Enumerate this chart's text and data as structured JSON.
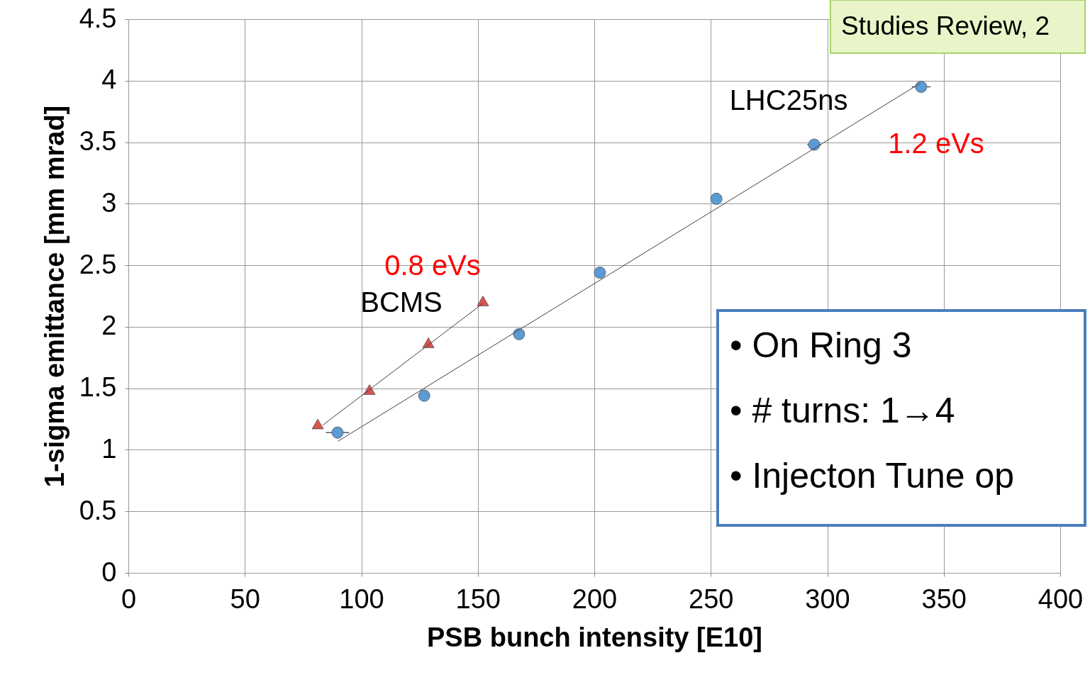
{
  "chart_data": {
    "type": "scatter",
    "xlabel": "PSB bunch intensity [E10]",
    "ylabel": "1-sigma emittance [mm mrad]",
    "xlim": [
      0,
      400
    ],
    "xticks": [
      0,
      50,
      100,
      150,
      200,
      250,
      300,
      350,
      400
    ],
    "ylim": [
      0,
      4.5
    ],
    "yticks": [
      0,
      0.5,
      1,
      1.5,
      2,
      2.5,
      3,
      3.5,
      4,
      4.5
    ],
    "grid": true,
    "series": [
      {
        "marker": "circle",
        "color": "#5b9bd5",
        "x": [
          89.8,
          127,
          167.7,
          202.4,
          252.4,
          294.4,
          340.3
        ],
        "values": [
          1.14,
          1.44,
          1.94,
          2.44,
          3.04,
          3.48,
          3.95
        ],
        "xerrors": [
          5,
          null,
          null,
          null,
          null,
          3,
          4
        ]
      },
      {
        "marker": "triangle",
        "color": "#d9534f",
        "x": [
          81.3,
          103.5,
          128.8,
          152.2
        ],
        "values": [
          1.21,
          1.49,
          1.87,
          2.21
        ]
      },
      {
        "type": "line",
        "color": "#404040",
        "x": [
          90,
          340
        ],
        "values": [
          1.07,
          3.98
        ]
      },
      {
        "type": "line",
        "color": "#404040",
        "x": [
          83.4,
          152.2
        ],
        "values": [
          1.2,
          2.19
        ]
      }
    ],
    "annotations": [
      "LHC25ns",
      "1.2 eVs",
      "0.8 eVs",
      "BCMS",
      "•   On Ring 3",
      "•   # turns: 1→4",
      "•   Injecton Tune op",
      "Studies Review, 2"
    ]
  }
}
